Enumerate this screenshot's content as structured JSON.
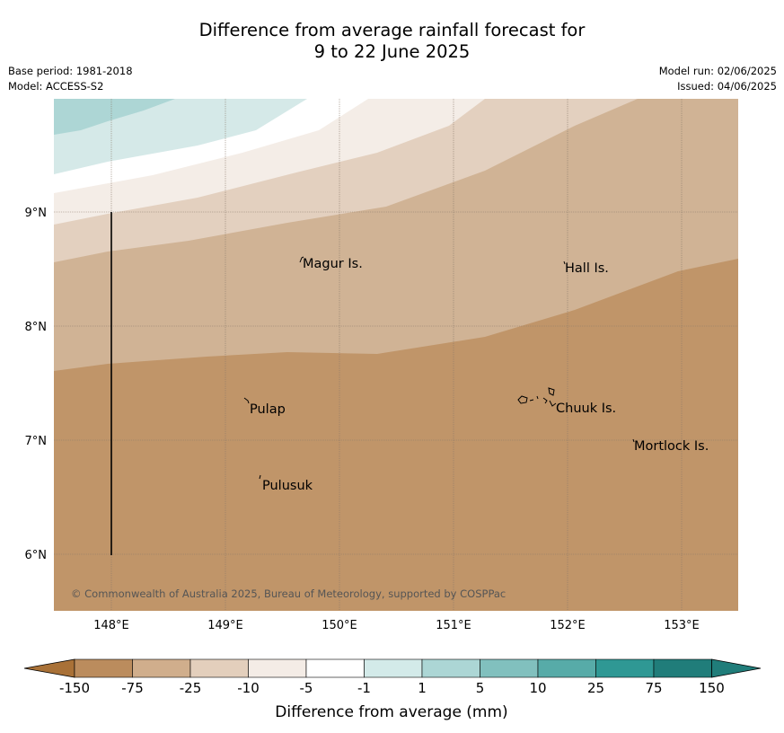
{
  "header": {
    "title_line1": "Difference from average rainfall forecast for",
    "title_line2": "9 to 22 June 2025",
    "base_period": "Base period: 1981-2018",
    "model": "Model: ACCESS-S2",
    "model_run": "Model run: 02/06/2025",
    "issued": "Issued: 04/06/2025"
  },
  "map": {
    "lat_ticks": [
      "9°N",
      "8°N",
      "7°N",
      "6°N"
    ],
    "lon_ticks": [
      "148°E",
      "149°E",
      "150°E",
      "151°E",
      "152°E",
      "153°E"
    ],
    "places": [
      "Magur Is.",
      "Hall Is.",
      "Pulap",
      "Chuuk Is.",
      "Mortlock Is.",
      "Pulusuk"
    ],
    "copyright": "© Commonwealth of Australia 2025, Bureau of Meteorology, supported by COSPPac"
  },
  "colorbar": {
    "ticks": [
      "-150",
      "-75",
      "-25",
      "-10",
      "-5",
      "-1",
      "1",
      "5",
      "10",
      "25",
      "75",
      "150"
    ],
    "colors": [
      "#a97137",
      "#bb8c5d",
      "#d0ae8c",
      "#e3cfbc",
      "#f4ece6",
      "#ffffff",
      "#d3eae9",
      "#acd6d5",
      "#81c0be",
      "#57aba8",
      "#2f9894",
      "#207d7a"
    ],
    "label": "Difference from average (mm)"
  }
}
